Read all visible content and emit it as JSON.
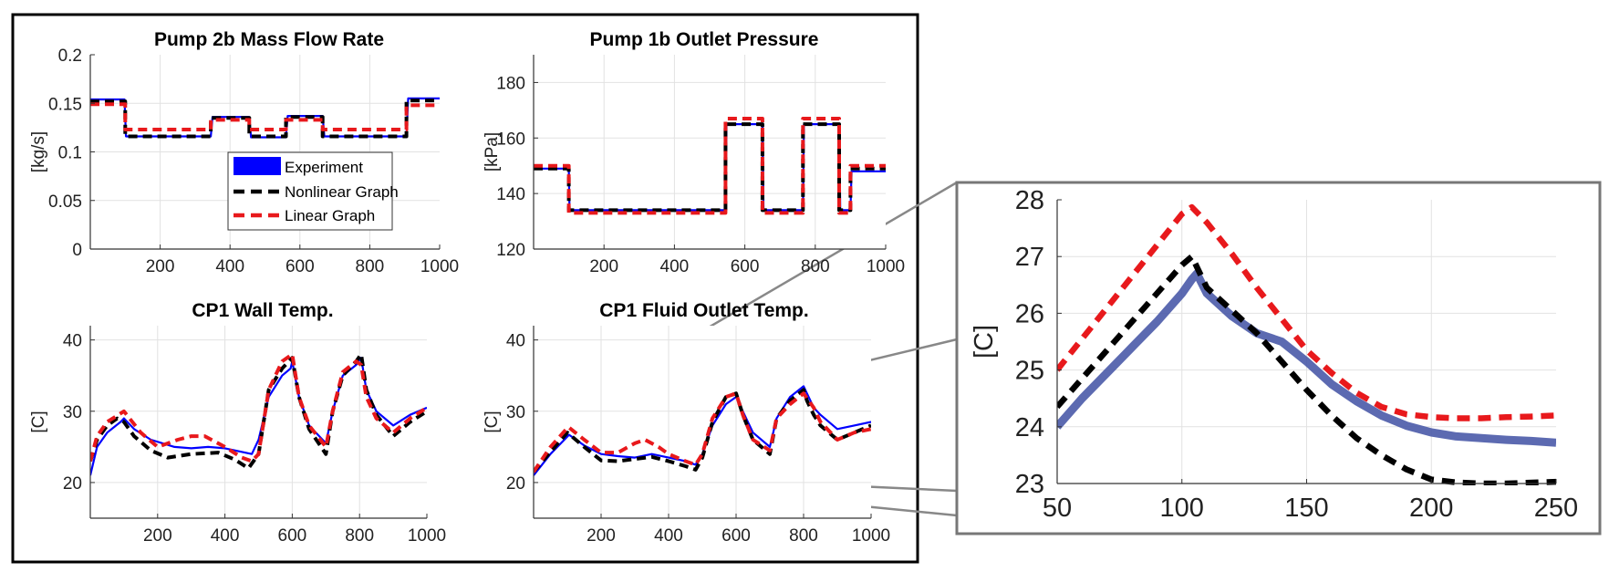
{
  "colors": {
    "experiment": "#0000ff",
    "nonlinear": "#000000",
    "linear": "#e8191c",
    "zoom_experiment": "#4a5aa8",
    "zoom_box": "#777777"
  },
  "legend": {
    "placement": "inside-bottom-right of first panel",
    "entries": [
      "Experiment",
      "Nonlinear Graph",
      "Linear Graph"
    ]
  },
  "chart_data": [
    {
      "type": "line",
      "title": "Pump 2b Mass Flow Rate",
      "ylabel": "[kg/s]",
      "xlim": [
        0,
        1000
      ],
      "ylim": [
        0,
        0.2
      ],
      "xticks": [
        200,
        400,
        600,
        800,
        1000
      ],
      "yticks": [
        0,
        0.05,
        0.1,
        0.15,
        0.2
      ],
      "ytick_labels": [
        "0",
        "0.05",
        "0.1",
        "0.15",
        "0.2"
      ],
      "grid": true,
      "series": [
        {
          "name": "Experiment",
          "style": "solid",
          "x": [
            0,
            98,
            102,
            345,
            350,
            455,
            460,
            560,
            565,
            665,
            670,
            905,
            910,
            1000
          ],
          "y": [
            0.154,
            0.154,
            0.116,
            0.116,
            0.136,
            0.136,
            0.115,
            0.115,
            0.137,
            0.137,
            0.116,
            0.116,
            0.155,
            0.155
          ]
        },
        {
          "name": "Nonlinear Graph",
          "style": "dashed",
          "x": [
            0,
            100,
            100,
            345,
            345,
            455,
            455,
            560,
            560,
            665,
            665,
            905,
            905,
            1000
          ],
          "y": [
            0.152,
            0.152,
            0.116,
            0.116,
            0.135,
            0.135,
            0.116,
            0.116,
            0.136,
            0.136,
            0.116,
            0.116,
            0.153,
            0.153
          ]
        },
        {
          "name": "Linear Graph",
          "style": "dashed",
          "x": [
            0,
            100,
            100,
            345,
            345,
            455,
            455,
            560,
            560,
            665,
            665,
            905,
            905,
            1000
          ],
          "y": [
            0.149,
            0.149,
            0.123,
            0.123,
            0.133,
            0.133,
            0.123,
            0.123,
            0.133,
            0.133,
            0.123,
            0.123,
            0.148,
            0.148
          ]
        }
      ]
    },
    {
      "type": "line",
      "title": "Pump 1b Outlet Pressure",
      "ylabel": "[kPa]",
      "xlim": [
        0,
        1000
      ],
      "ylim": [
        120,
        190
      ],
      "xticks": [
        200,
        400,
        600,
        800,
        1000
      ],
      "yticks": [
        120,
        140,
        160,
        180
      ],
      "ytick_labels": [
        "120",
        "140",
        "160",
        "180"
      ],
      "grid": true,
      "series": [
        {
          "name": "Experiment",
          "style": "solid",
          "x": [
            0,
            100,
            102,
            545,
            548,
            650,
            653,
            765,
            768,
            868,
            871,
            900,
            903,
            1000
          ],
          "y": [
            149,
            149,
            134,
            134,
            165,
            165,
            134,
            134,
            165,
            165,
            134,
            134,
            148,
            148
          ]
        },
        {
          "name": "Nonlinear Graph",
          "style": "dashed",
          "x": [
            0,
            100,
            100,
            545,
            545,
            650,
            650,
            765,
            765,
            868,
            868,
            900,
            900,
            1000
          ],
          "y": [
            149,
            149,
            134,
            134,
            165,
            165,
            134,
            134,
            165,
            165,
            134,
            134,
            149,
            149
          ]
        },
        {
          "name": "Linear Graph",
          "style": "dashed",
          "x": [
            0,
            100,
            100,
            545,
            545,
            650,
            650,
            765,
            765,
            868,
            868,
            900,
            900,
            1000
          ],
          "y": [
            150,
            150,
            133,
            133,
            167,
            167,
            133,
            133,
            167,
            167,
            133,
            133,
            150,
            150
          ]
        }
      ]
    },
    {
      "type": "line",
      "title": "CP1 Wall Temp.",
      "ylabel": "[C]",
      "xlim": [
        0,
        1000
      ],
      "ylim": [
        15,
        42
      ],
      "xticks": [
        200,
        400,
        600,
        800,
        1000
      ],
      "yticks": [
        20,
        30,
        40
      ],
      "ytick_labels": [
        "20",
        "30",
        "40"
      ],
      "grid": true,
      "series": [
        {
          "name": "Experiment",
          "style": "solid",
          "x": [
            0,
            20,
            50,
            90,
            100,
            130,
            180,
            250,
            300,
            350,
            400,
            480,
            500,
            530,
            570,
            595,
            600,
            620,
            650,
            700,
            720,
            750,
            790,
            805,
            820,
            850,
            900,
            950,
            1000
          ],
          "y": [
            21,
            25,
            27,
            28.5,
            29,
            27.5,
            26,
            25,
            24.8,
            25,
            24.8,
            24,
            26,
            32,
            35,
            36,
            37,
            32,
            28,
            25.5,
            30,
            35,
            36.5,
            37.5,
            33,
            30,
            28,
            29.5,
            30.5
          ]
        },
        {
          "name": "Nonlinear Graph",
          "style": "dashed",
          "x": [
            0,
            20,
            50,
            80,
            100,
            130,
            180,
            230,
            300,
            380,
            430,
            470,
            500,
            530,
            570,
            600,
            620,
            650,
            700,
            720,
            750,
            790,
            805,
            820,
            850,
            900,
            950,
            1000
          ],
          "y": [
            23,
            26,
            28,
            29,
            28.5,
            26.5,
            24.5,
            23.5,
            24,
            24.2,
            23.2,
            22,
            24,
            33,
            36,
            37.5,
            32,
            27.5,
            24,
            30,
            35,
            37,
            38,
            33,
            29.5,
            26.5,
            28.5,
            30
          ]
        },
        {
          "name": "Linear Graph",
          "style": "dashed",
          "x": [
            0,
            20,
            50,
            100,
            150,
            200,
            260,
            300,
            340,
            400,
            450,
            480,
            500,
            530,
            570,
            600,
            620,
            650,
            700,
            720,
            750,
            790,
            805,
            820,
            850,
            900,
            950,
            1000
          ],
          "y": [
            23,
            26.5,
            28.5,
            30,
            27,
            25,
            26,
            26.5,
            26.5,
            25,
            23.5,
            23,
            24,
            33,
            37,
            38,
            32,
            28,
            25,
            30,
            35.5,
            37,
            36.5,
            32,
            29,
            27,
            29,
            30.5
          ]
        }
      ]
    },
    {
      "type": "line",
      "title": "CP1 Fluid Outlet Temp.",
      "ylabel": "[C]",
      "xlim": [
        0,
        1000
      ],
      "ylim": [
        15,
        42
      ],
      "xticks": [
        200,
        400,
        600,
        800,
        1000
      ],
      "yticks": [
        20,
        30,
        40
      ],
      "ytick_labels": [
        "20",
        "30",
        "40"
      ],
      "grid": true,
      "series": [
        {
          "name": "Experiment",
          "style": "solid",
          "x": [
            0,
            50,
            105,
            150,
            200,
            250,
            300,
            350,
            400,
            450,
            480,
            500,
            530,
            570,
            600,
            620,
            650,
            700,
            720,
            760,
            800,
            810,
            830,
            850,
            900,
            950,
            1000
          ],
          "y": [
            21,
            24,
            26.7,
            25.2,
            24,
            23.7,
            23.5,
            24,
            23.5,
            23,
            22.5,
            24,
            28,
            31,
            32,
            30,
            27,
            25,
            29,
            32,
            33.5,
            32.5,
            30.5,
            29.5,
            27.5,
            28,
            28.5
          ]
        },
        {
          "name": "Nonlinear Graph",
          "style": "dashed",
          "x": [
            0,
            50,
            100,
            150,
            200,
            250,
            300,
            350,
            400,
            450,
            480,
            500,
            530,
            570,
            600,
            620,
            650,
            700,
            720,
            760,
            800,
            810,
            830,
            850,
            900,
            950,
            1000
          ],
          "y": [
            21.5,
            24.3,
            27,
            25,
            23.1,
            23,
            23.3,
            23.6,
            23,
            22.3,
            21.8,
            23.5,
            28.5,
            32,
            32.5,
            29.5,
            26,
            24,
            29,
            31.5,
            33,
            31.5,
            29.5,
            28,
            26,
            27,
            28
          ]
        },
        {
          "name": "Linear Graph",
          "style": "dashed",
          "x": [
            0,
            50,
            103,
            150,
            200,
            250,
            300,
            330,
            370,
            400,
            450,
            480,
            500,
            530,
            570,
            600,
            620,
            650,
            700,
            720,
            760,
            800,
            830,
            850,
            900,
            950,
            1000
          ],
          "y": [
            21.5,
            25,
            27.8,
            26,
            24.2,
            24.2,
            25.5,
            26,
            25,
            24,
            23,
            22.5,
            24,
            29,
            32,
            32.5,
            29.5,
            26,
            24.5,
            29,
            31,
            32.5,
            30.5,
            28.5,
            26,
            27,
            27.5
          ]
        }
      ]
    },
    {
      "type": "line",
      "title": "",
      "ylabel": "[C]",
      "xlim": [
        50,
        250
      ],
      "ylim": [
        23,
        28
      ],
      "xticks": [
        50,
        100,
        150,
        200,
        250
      ],
      "yticks": [
        23,
        24,
        25,
        26,
        27,
        28
      ],
      "ytick_labels": [
        "23",
        "24",
        "25",
        "26",
        "27",
        "28"
      ],
      "grid": true,
      "series": [
        {
          "name": "Experiment",
          "style": "band",
          "x": [
            50,
            60,
            70,
            80,
            90,
            100,
            104,
            106,
            110,
            120,
            130,
            140,
            150,
            160,
            170,
            180,
            190,
            200,
            210,
            220,
            230,
            240,
            250
          ],
          "y": [
            24,
            24.5,
            24.95,
            25.4,
            25.85,
            26.35,
            26.6,
            26.7,
            26.35,
            25.95,
            25.65,
            25.5,
            25.15,
            24.75,
            24.45,
            24.2,
            24.02,
            23.9,
            23.83,
            23.8,
            23.77,
            23.75,
            23.72
          ]
        },
        {
          "name": "Nonlinear Graph",
          "style": "dashed",
          "x": [
            50,
            60,
            70,
            80,
            90,
            100,
            104,
            110,
            120,
            130,
            140,
            150,
            160,
            170,
            180,
            190,
            200,
            210,
            220,
            230,
            250
          ],
          "y": [
            24.35,
            24.85,
            25.35,
            25.85,
            26.35,
            26.85,
            27,
            26.45,
            26.05,
            25.65,
            25.15,
            24.65,
            24.2,
            23.8,
            23.5,
            23.25,
            23.07,
            23.02,
            23,
            23,
            23.03
          ]
        },
        {
          "name": "Linear Graph",
          "style": "dashed",
          "x": [
            50,
            60,
            70,
            80,
            90,
            100,
            104,
            110,
            120,
            130,
            140,
            150,
            160,
            170,
            180,
            190,
            200,
            210,
            220,
            230,
            240,
            250
          ],
          "y": [
            25,
            25.55,
            26.1,
            26.65,
            27.2,
            27.75,
            27.87,
            27.6,
            27.05,
            26.45,
            25.9,
            25.35,
            24.95,
            24.6,
            24.35,
            24.22,
            24.17,
            24.15,
            24.15,
            24.17,
            24.18,
            24.2
          ]
        }
      ]
    }
  ]
}
